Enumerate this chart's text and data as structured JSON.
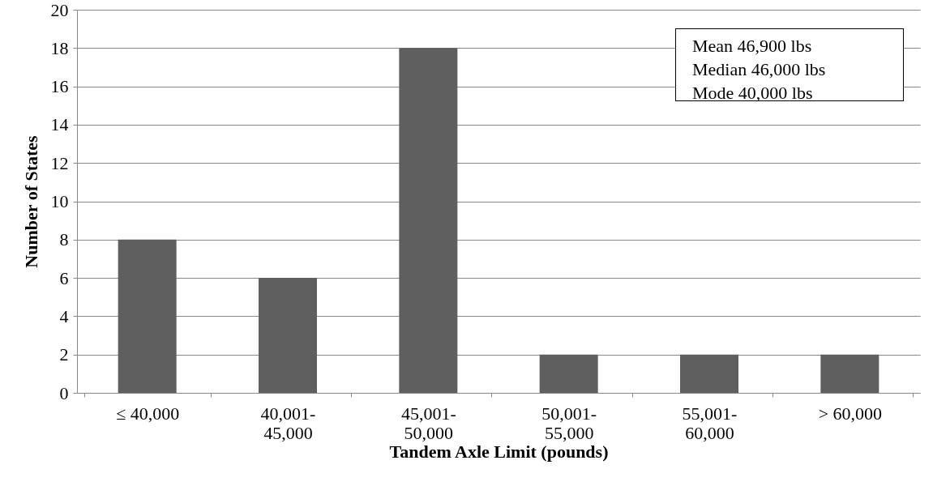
{
  "chart_data": {
    "type": "bar",
    "xlabel": "Tandem Axle Limit (pounds)",
    "ylabel": "Number of  States",
    "categories": [
      "≤ 40,000",
      "40,001-\n45,000",
      "45,001-\n50,000",
      "50,001-\n55,000",
      "55,001-\n60,000",
      "> 60,000"
    ],
    "values": [
      8,
      6,
      18,
      2,
      2,
      2
    ],
    "color": "#5f5f5f",
    "ylim": [
      0,
      20
    ],
    "yticks": [
      0,
      2,
      4,
      6,
      8,
      10,
      12,
      14,
      16,
      18,
      20
    ],
    "grid": "y",
    "annotations": [
      "Mean 46,900 lbs",
      "Median 46,000 lbs",
      "Mode 40,000 lbs"
    ]
  }
}
